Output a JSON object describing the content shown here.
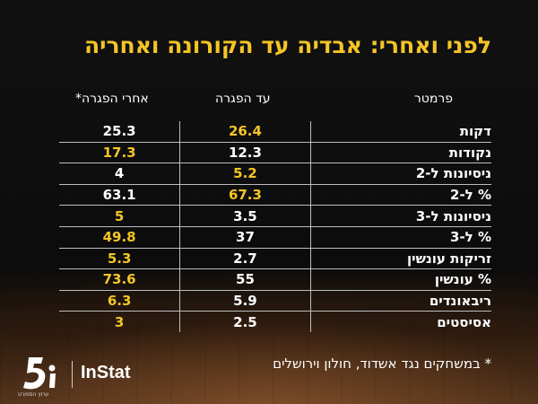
{
  "title": "לפני ואחרי: אבדיה עד הקורונה ואחריה",
  "headers": {
    "param": "פרמטר",
    "before": "עד הפגרה",
    "after": "אחרי הפגרה*"
  },
  "rows": [
    {
      "param": "דקות",
      "before": "26.4",
      "after": "25.3",
      "highlight": "before"
    },
    {
      "param": "נקודות",
      "before": "12.3",
      "after": "17.3",
      "highlight": "after"
    },
    {
      "param": "ניסיונות ל-2",
      "before": "5.2",
      "after": "4",
      "highlight": "before"
    },
    {
      "param": "% ל-2",
      "before": "67.3",
      "after": "63.1",
      "highlight": "before"
    },
    {
      "param": "ניסיונות ל-3",
      "before": "3.5",
      "after": "5",
      "highlight": "after"
    },
    {
      "param": "% ל-3",
      "before": "37",
      "after": "49.8",
      "highlight": "after"
    },
    {
      "param": "זריקות עונשין",
      "before": "2.7",
      "after": "5.3",
      "highlight": "after"
    },
    {
      "param": "% עונשין",
      "before": "55",
      "after": "73.6",
      "highlight": "after"
    },
    {
      "param": "ריבאונדים",
      "before": "5.9",
      "after": "6.3",
      "highlight": "after"
    },
    {
      "param": "אסיסטים",
      "before": "2.5",
      "after": "3",
      "highlight": "after"
    }
  ],
  "footnote": "* במשחקים נגד אשדוד, חולון וירושלים",
  "brand": {
    "instat": "InStat",
    "sport5_caption": "ערוץ הספורט"
  },
  "colors": {
    "highlight": "#f4c526",
    "text": "#ffffff",
    "background": "#0b0b0b"
  }
}
